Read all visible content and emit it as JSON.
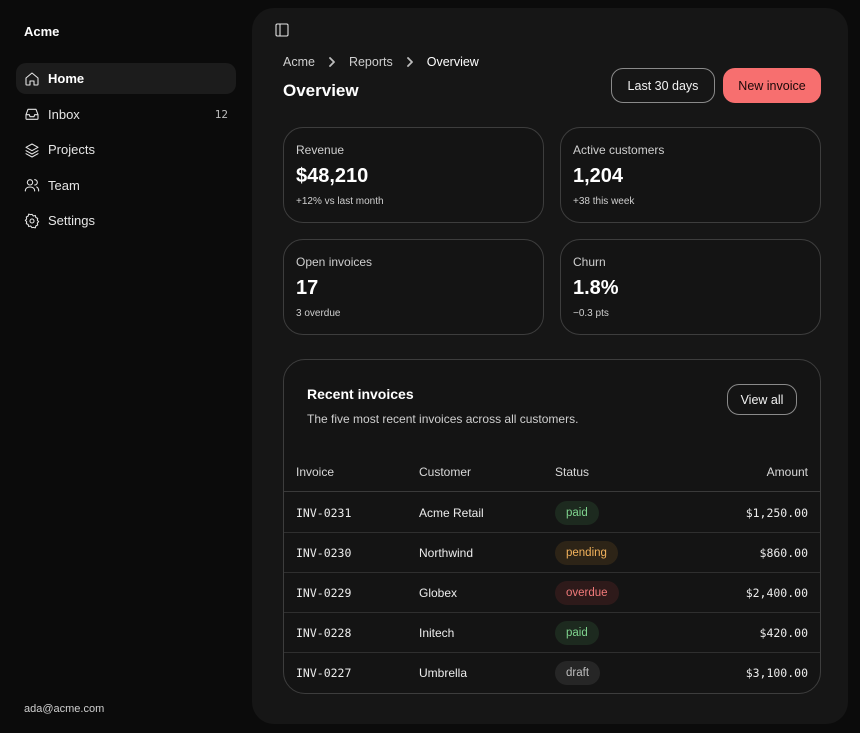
{
  "app": {
    "brand": "Acme",
    "user_email": "ada@acme.com"
  },
  "sidebar": {
    "items": [
      {
        "label": "Home",
        "icon": "home-icon",
        "active": true
      },
      {
        "label": "Inbox",
        "icon": "inbox-icon",
        "count": "12"
      },
      {
        "label": "Projects",
        "icon": "layers-icon"
      },
      {
        "label": "Team",
        "icon": "users-icon"
      },
      {
        "label": "Settings",
        "icon": "gear-icon"
      }
    ]
  },
  "header": {
    "breadcrumb": [
      "Acme",
      "Reports",
      "Overview"
    ],
    "title": "Overview",
    "range_button": "Last 30 days",
    "new_button": "New invoice"
  },
  "stats": [
    {
      "label": "Revenue",
      "value": "$48,210",
      "sub": "+12% vs last month"
    },
    {
      "label": "Active customers",
      "value": "1,204",
      "sub": "+38 this week"
    },
    {
      "label": "Open invoices",
      "value": "17",
      "sub": "3 overdue"
    },
    {
      "label": "Churn",
      "value": "1.8%",
      "sub": "−0.3 pts"
    }
  ],
  "invoices": {
    "title": "Recent invoices",
    "description": "The five most recent invoices across all customers.",
    "view_all": "View all",
    "columns": {
      "invoice": "Invoice",
      "customer": "Customer",
      "status": "Status",
      "amount": "Amount"
    },
    "rows": [
      {
        "invoice": "INV-0231",
        "customer": "Acme Retail",
        "status": "paid",
        "amount": "$1,250.00"
      },
      {
        "invoice": "INV-0230",
        "customer": "Northwind",
        "status": "pending",
        "amount": "$860.00"
      },
      {
        "invoice": "INV-0229",
        "customer": "Globex",
        "status": "overdue",
        "amount": "$2,400.00"
      },
      {
        "invoice": "INV-0228",
        "customer": "Initech",
        "status": "paid",
        "amount": "$420.00"
      },
      {
        "invoice": "INV-0227",
        "customer": "Umbrella",
        "status": "draft",
        "amount": "$3,100.00"
      }
    ]
  },
  "colors": {
    "accent": "#f76f6f",
    "paid": "#7fd48e",
    "pending": "#f2b25c",
    "overdue": "#f27a7a",
    "draft": "#bdbdbd"
  }
}
